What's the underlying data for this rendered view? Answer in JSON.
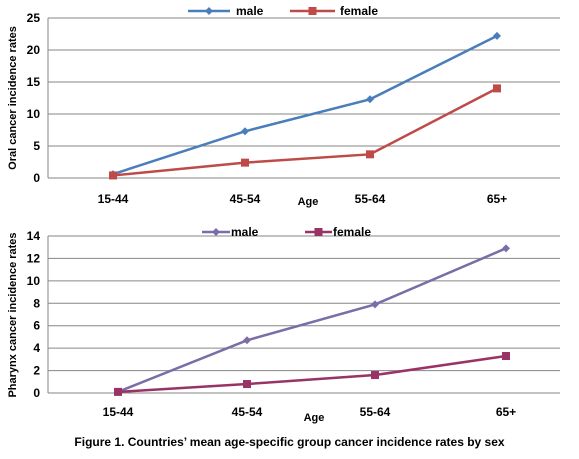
{
  "caption": "Figure 1. Countries’ mean age-specific group cancer incidence rates by sex",
  "chart_data": [
    {
      "type": "line",
      "title": "",
      "xlabel": "Age",
      "ylabel": "Oral cancer incidence rates",
      "categories": [
        "15-44",
        "45-54",
        "55-64",
        "65+"
      ],
      "ylim": [
        0,
        25
      ],
      "yticks": [
        0,
        5,
        10,
        15,
        20,
        25
      ],
      "grid": true,
      "legend": "top",
      "series": [
        {
          "name": "male",
          "values": [
            0.6,
            7.3,
            12.3,
            22.2
          ],
          "color": "#4A7EBB",
          "marker": "diamond"
        },
        {
          "name": "female",
          "values": [
            0.4,
            2.4,
            3.7,
            14.0
          ],
          "color": "#BE4B48",
          "marker": "square"
        }
      ]
    },
    {
      "type": "line",
      "title": "",
      "xlabel": "Age",
      "ylabel": "Pharynx cancer incidence rates",
      "categories": [
        "15-44",
        "45-54",
        "55-64",
        "65+"
      ],
      "ylim": [
        0,
        14
      ],
      "yticks": [
        0,
        2,
        4,
        6,
        8,
        10,
        12,
        14
      ],
      "grid": true,
      "legend": "top",
      "series": [
        {
          "name": "male",
          "values": [
            0.1,
            4.7,
            7.9,
            12.9
          ],
          "color": "#7B6DA8",
          "marker": "diamond"
        },
        {
          "name": "female",
          "values": [
            0.1,
            0.8,
            1.6,
            3.3
          ],
          "color": "#993366",
          "marker": "square"
        }
      ]
    }
  ]
}
